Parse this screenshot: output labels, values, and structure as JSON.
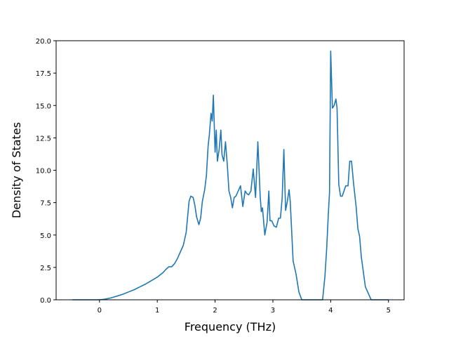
{
  "colors": {
    "line": "#1f77b4",
    "axes": "#000000",
    "background": "#ffffff"
  },
  "chart_data": {
    "type": "line",
    "title": "",
    "xlabel": "Frequency (THz)",
    "ylabel": "Density of States",
    "xlim": [
      -0.75,
      5.27
    ],
    "ylim": [
      0.0,
      20.0
    ],
    "grid": false,
    "x_ticks": [
      0,
      1,
      2,
      3,
      4,
      5
    ],
    "x_tick_labels": [
      "0",
      "1",
      "2",
      "3",
      "4",
      "5"
    ],
    "y_ticks": [
      0.0,
      2.5,
      5.0,
      7.5,
      10.0,
      12.5,
      15.0,
      17.5,
      20.0
    ],
    "y_tick_labels": [
      "0.0",
      "2.5",
      "5.0",
      "7.5",
      "10.0",
      "12.5",
      "15.0",
      "17.5",
      "20.0"
    ],
    "series": [
      {
        "x": [
          -0.47,
          -0.3,
          -0.1,
          0.0,
          0.1,
          0.2,
          0.3,
          0.4,
          0.5,
          0.6,
          0.7,
          0.8,
          0.9,
          1.0,
          1.1,
          1.15,
          1.2,
          1.25,
          1.3,
          1.35,
          1.4,
          1.45,
          1.5,
          1.55,
          1.58,
          1.62,
          1.65,
          1.68,
          1.72,
          1.75,
          1.78,
          1.82,
          1.85,
          1.88,
          1.9,
          1.93,
          1.95,
          1.97,
          2.0,
          2.02,
          2.04,
          2.07,
          2.1,
          2.12,
          2.15,
          2.18,
          2.21,
          2.24,
          2.27,
          2.3,
          2.33,
          2.36,
          2.4,
          2.44,
          2.48,
          2.52,
          2.55,
          2.58,
          2.62,
          2.66,
          2.7,
          2.74,
          2.78,
          2.8,
          2.82,
          2.86,
          2.9,
          2.93,
          2.95,
          2.98,
          3.02,
          3.06,
          3.1,
          3.13,
          3.16,
          3.19,
          3.22,
          3.25,
          3.28,
          3.3,
          3.35,
          3.4,
          3.45,
          3.5,
          3.6,
          3.7,
          3.8,
          3.86,
          3.9,
          3.93,
          3.96,
          3.98,
          4.0,
          4.03,
          4.06,
          4.09,
          4.11,
          4.14,
          4.17,
          4.2,
          4.23,
          4.26,
          4.3,
          4.33,
          4.36,
          4.4,
          4.44,
          4.47,
          4.5,
          4.53,
          4.6,
          4.7,
          4.8,
          5.0
        ],
        "y": [
          0.0,
          0.0,
          0.0,
          0.0,
          0.05,
          0.15,
          0.28,
          0.42,
          0.6,
          0.78,
          1.0,
          1.22,
          1.48,
          1.75,
          2.1,
          2.35,
          2.55,
          2.55,
          2.8,
          3.2,
          3.7,
          4.2,
          5.2,
          7.6,
          8.0,
          7.9,
          7.3,
          6.4,
          5.8,
          6.3,
          7.6,
          8.5,
          9.6,
          11.9,
          12.7,
          14.4,
          13.8,
          15.8,
          11.4,
          13.1,
          10.7,
          11.6,
          13.1,
          11.2,
          10.7,
          12.2,
          10.5,
          8.4,
          7.9,
          7.1,
          7.9,
          8.0,
          8.4,
          8.8,
          7.2,
          8.4,
          8.2,
          8.1,
          8.4,
          10.1,
          7.9,
          12.2,
          8.0,
          6.8,
          7.1,
          5.0,
          6.0,
          8.4,
          6.1,
          6.1,
          5.7,
          5.6,
          6.3,
          6.3,
          7.8,
          11.6,
          6.9,
          7.6,
          8.5,
          7.6,
          3.0,
          2.0,
          0.6,
          0.0,
          0.0,
          0.0,
          0.0,
          0.0,
          1.8,
          3.9,
          6.7,
          8.3,
          19.2,
          14.8,
          15.0,
          15.5,
          14.8,
          8.9,
          8.0,
          8.0,
          8.4,
          8.8,
          8.8,
          10.7,
          10.7,
          8.8,
          7.2,
          5.5,
          4.9,
          3.3,
          1.0,
          0.0,
          0.0,
          0.0
        ]
      }
    ]
  }
}
